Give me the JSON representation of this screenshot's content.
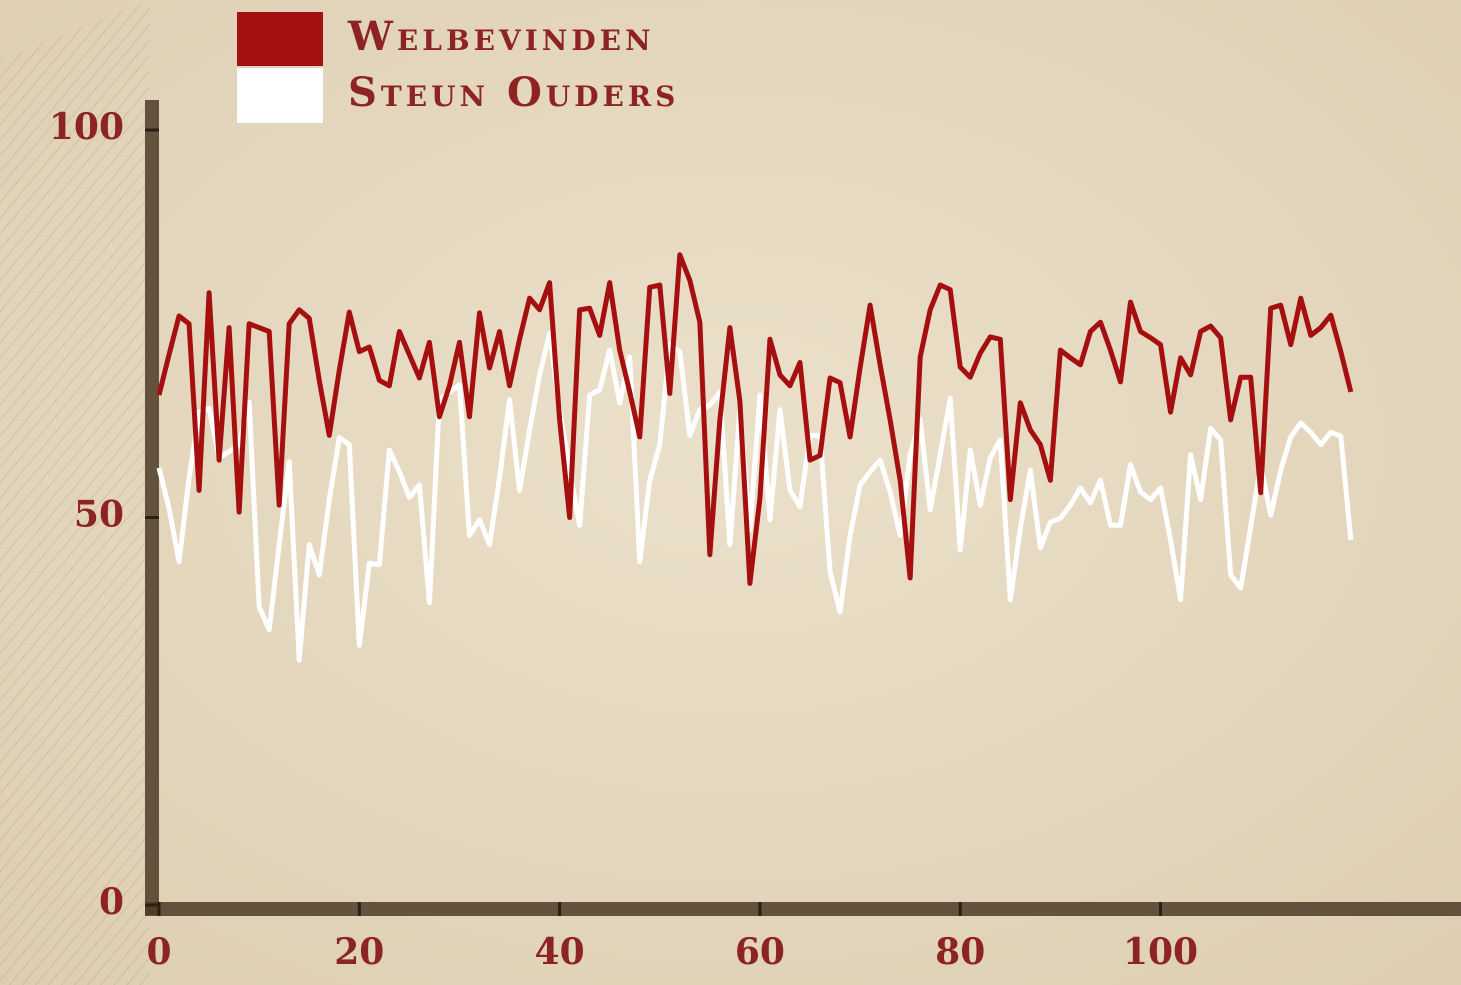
{
  "chart_data": {
    "type": "line",
    "x": [
      0,
      1,
      2,
      3,
      4,
      5,
      6,
      7,
      8,
      9,
      10,
      11,
      12,
      13,
      14,
      15,
      16,
      17,
      18,
      19,
      20,
      21,
      22,
      23,
      24,
      25,
      26,
      27,
      28,
      29,
      30,
      31,
      32,
      33,
      34,
      35,
      36,
      37,
      38,
      39,
      40,
      41,
      42,
      43,
      44,
      45,
      46,
      47,
      48,
      49,
      50,
      51,
      52,
      53,
      54,
      55,
      56,
      57,
      58,
      59,
      60,
      61,
      62,
      63,
      64,
      65,
      66,
      67,
      68,
      69,
      70,
      71,
      72,
      73,
      74,
      75,
      76,
      77,
      78,
      79,
      80,
      81,
      82,
      83,
      84,
      85,
      86,
      87,
      88,
      89,
      90,
      91,
      92,
      93,
      94,
      95,
      96,
      97,
      98,
      99,
      100,
      101,
      102,
      103,
      104,
      105,
      106,
      107,
      108,
      109,
      110,
      111,
      112,
      113,
      114,
      115,
      116,
      117,
      118,
      119
    ],
    "series": [
      {
        "name": "Welbevinden",
        "color": "#a50f0f",
        "values": [
          65.8,
          71,
          76,
          75,
          53.5,
          79,
          57.4,
          74.5,
          50.7,
          75,
          74.5,
          74,
          51.6,
          75,
          76.8,
          75.7,
          67.7,
          60.6,
          69,
          76.5,
          71.4,
          72,
          67.7,
          67,
          74,
          71,
          68,
          72.6,
          63,
          67,
          72.6,
          63,
          76.4,
          69.3,
          74,
          67,
          73,
          78.3,
          76.8,
          80.3,
          62.6,
          50,
          76.8,
          77,
          73.5,
          80.3,
          71.6,
          66.2,
          60.4,
          79.7,
          80,
          66,
          83.9,
          80.6,
          75.2,
          45.2,
          62.6,
          74.5,
          65,
          41.5,
          52.5,
          73,
          68.4,
          67,
          70,
          57.4,
          58,
          68,
          67.4,
          60.4,
          69.3,
          77.4,
          69.7,
          62.6,
          54.8,
          42.2,
          70.7,
          76.8,
          80,
          79.4,
          69.4,
          68.1,
          71.2,
          73.3,
          73,
          52.3,
          64.8,
          61.3,
          59.4,
          54.8,
          71.6,
          70.6,
          69.7,
          74,
          75.2,
          71.6,
          67.5,
          77.8,
          74,
          73.2,
          72.3,
          63.6,
          70.6,
          68.4,
          74,
          74.7,
          73.2,
          62.6,
          68.1,
          68.1,
          53.2,
          77,
          77.4,
          72.3,
          78.3,
          73.5,
          74.5,
          76.1,
          71.4,
          66.2
        ]
      },
      {
        "name": "Steun Ouders",
        "color": "#ffffff",
        "values": [
          56.4,
          51.2,
          44.3,
          55.1,
          63.6,
          64.1,
          57.7,
          58.5,
          59.4,
          64.9,
          38.5,
          35.5,
          46.5,
          57.2,
          31.6,
          46.5,
          42.6,
          52.3,
          60.3,
          59.4,
          33.5,
          44.1,
          43.9,
          58.7,
          55.9,
          52.6,
          54.2,
          39,
          65.2,
          66.2,
          67.1,
          47.7,
          49.7,
          46.5,
          55.1,
          65.2,
          53.5,
          61.3,
          68.4,
          73.8,
          63.9,
          56.1,
          49,
          65.8,
          66.5,
          71.6,
          64.8,
          70.7,
          44.3,
          54.8,
          59.4,
          72.3,
          71.4,
          60.6,
          63.9,
          64.5,
          66.2,
          46.5,
          63.9,
          48.4,
          65.8,
          49.7,
          63.9,
          53.5,
          51.4,
          60.6,
          60.6,
          43,
          37.8,
          47.7,
          54.2,
          55.9,
          57.4,
          53.3,
          47.7,
          58.1,
          62.6,
          51,
          58.1,
          65.4,
          45.8,
          58.7,
          51.6,
          57.7,
          60,
          39.4,
          48.6,
          56.1,
          46.1,
          49.4,
          49.9,
          51.6,
          53.8,
          51.9,
          54.8,
          49,
          49,
          56.8,
          53.3,
          52.3,
          53.8,
          47.1,
          39.4,
          58.1,
          52.3,
          61.5,
          60,
          42.6,
          40.9,
          48.8,
          56.8,
          50.3,
          56.1,
          60.4,
          62.2,
          61,
          59.4,
          61,
          60.5,
          47.1
        ]
      }
    ],
    "xlim": [
      0,
      130
    ],
    "xticks": [
      0,
      20,
      40,
      60,
      80,
      100
    ],
    "ylim": [
      0,
      104
    ],
    "yticks": [
      0,
      50,
      100
    ],
    "legend": "top-left"
  }
}
